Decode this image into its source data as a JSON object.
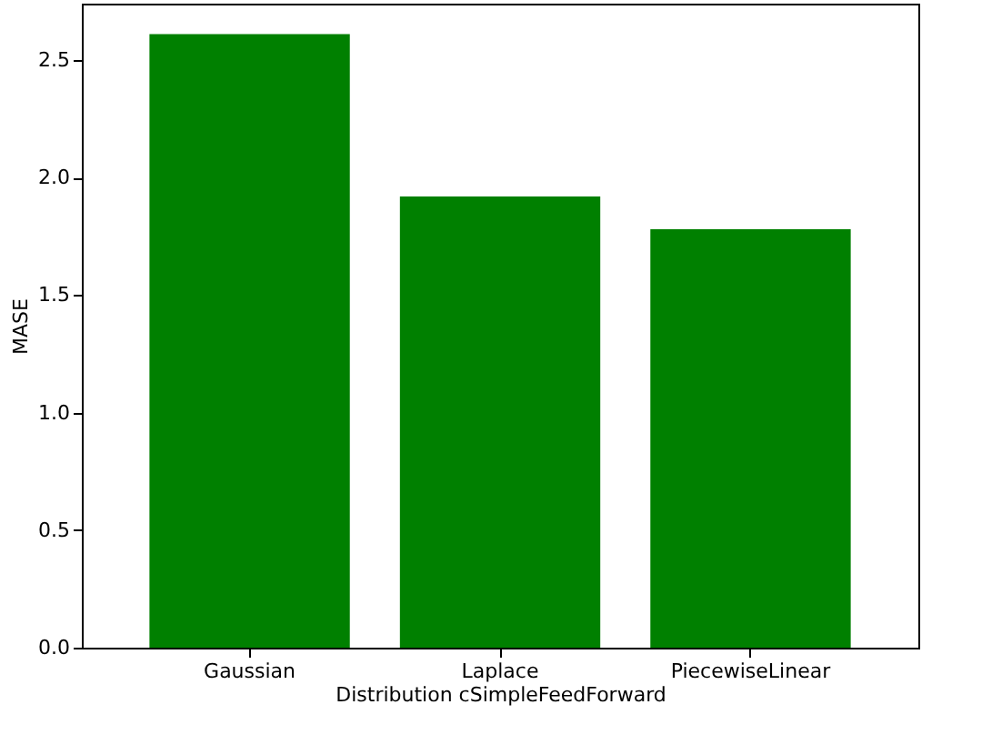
{
  "chart_data": {
    "type": "bar",
    "xlabel": "Distribution cSimpleFeedForward",
    "ylabel": "MASE",
    "categories": [
      "Gaussian",
      "Laplace",
      "PiecewiseLinear"
    ],
    "values": [
      2.61,
      1.92,
      1.78
    ],
    "color": "#008000",
    "ylim": [
      0,
      2.74
    ],
    "yticks": [
      {
        "value": 0,
        "label": "0.0"
      },
      0.5,
      {
        "value": 1,
        "label": "1.0"
      },
      1.5,
      {
        "value": 2,
        "label": "2.0"
      },
      2.5
    ],
    "grid": false
  }
}
